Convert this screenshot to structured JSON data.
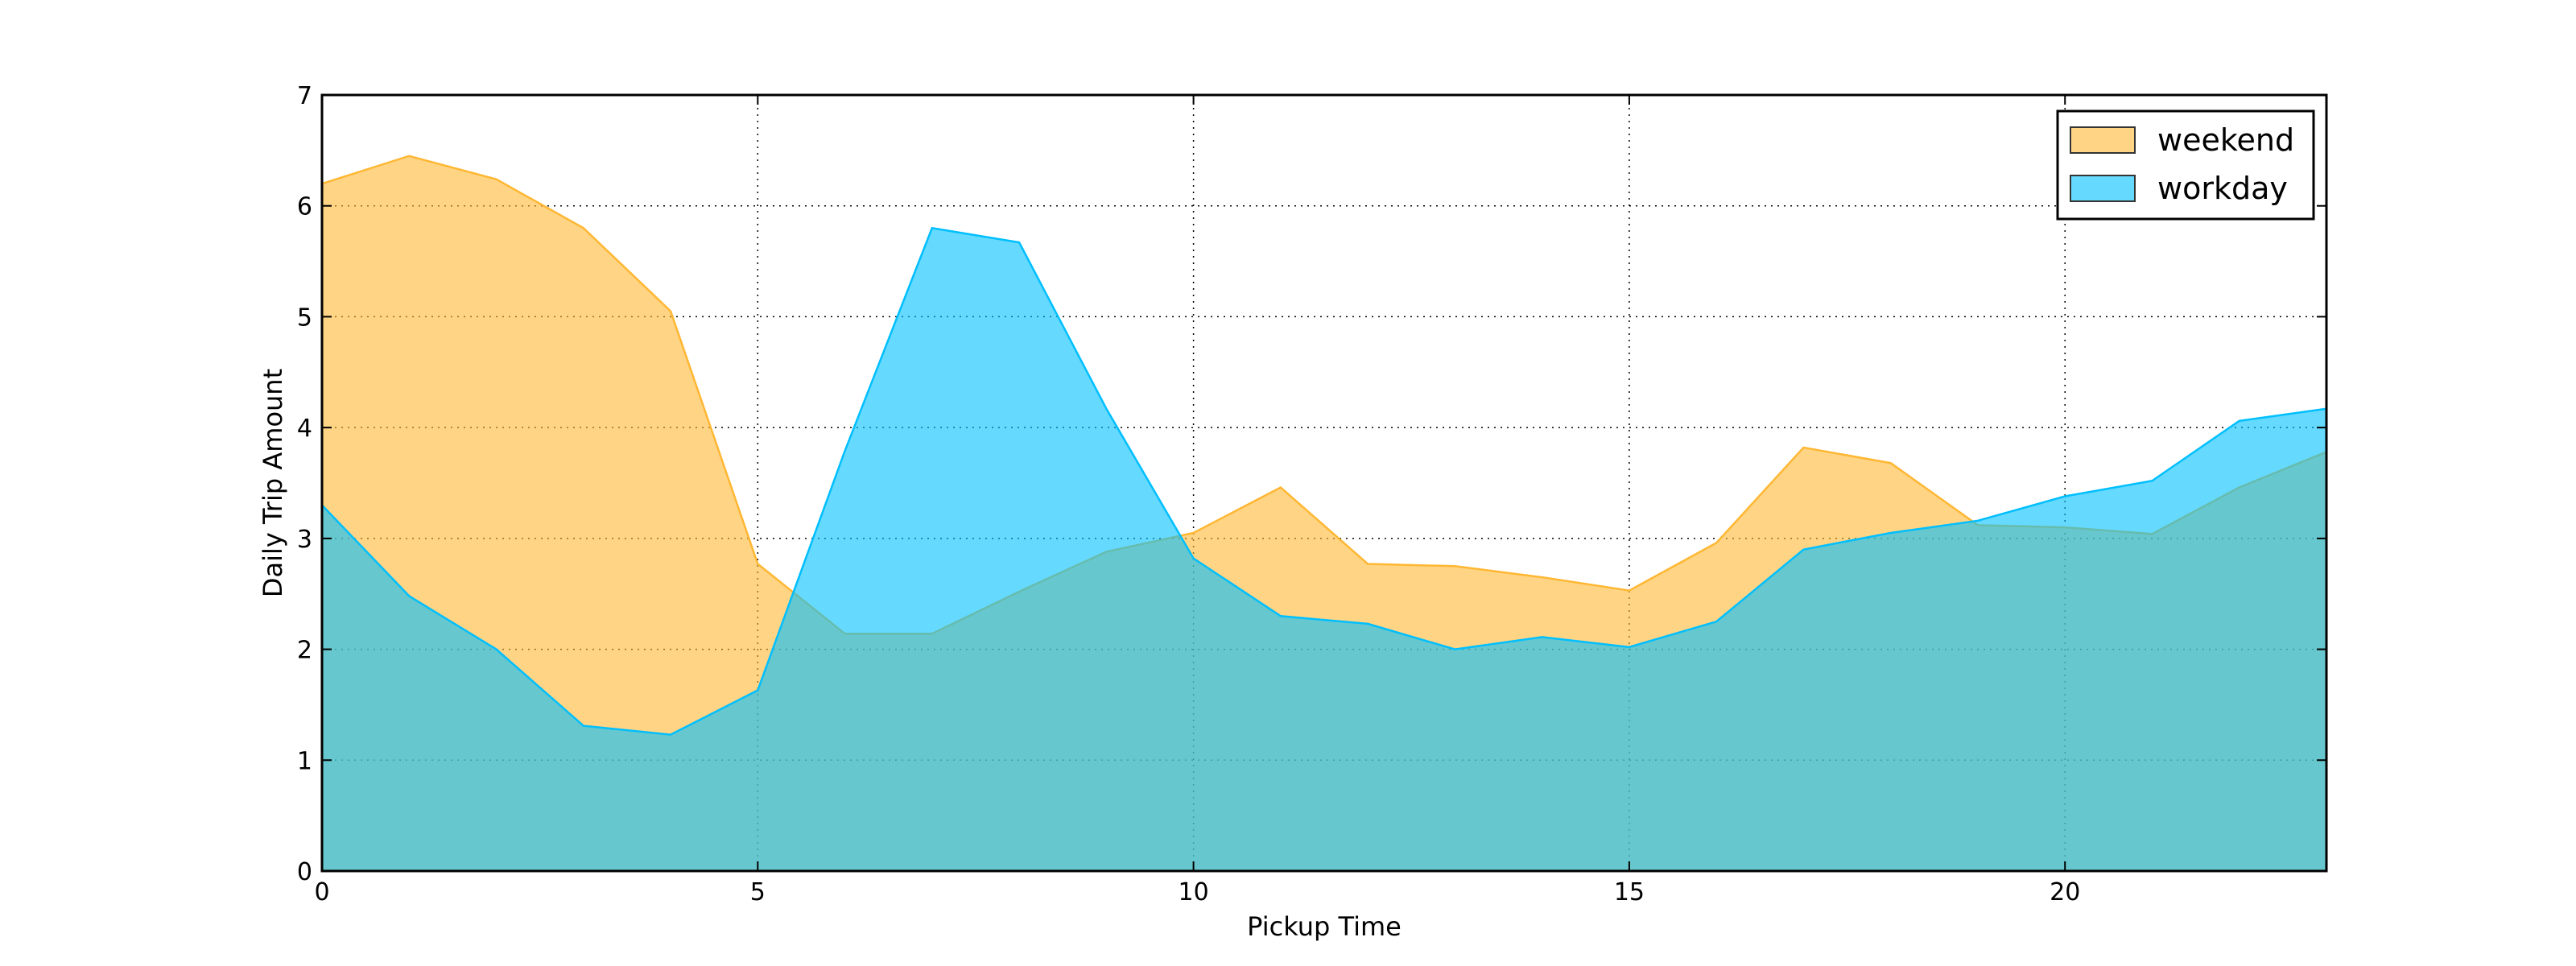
{
  "chart_data": {
    "type": "area",
    "title": "",
    "xlabel": "Pickup Time",
    "ylabel": "Daily Trip Amount",
    "xlim": [
      0,
      23
    ],
    "ylim": [
      0,
      7
    ],
    "xticks": [
      0,
      5,
      10,
      15,
      20
    ],
    "yticks": [
      0,
      1,
      2,
      3,
      4,
      5,
      6,
      7
    ],
    "grid": true,
    "legend_position": "top-right",
    "x": [
      0,
      1,
      2,
      3,
      4,
      5,
      6,
      7,
      8,
      9,
      10,
      11,
      12,
      13,
      14,
      15,
      16,
      17,
      18,
      19,
      20,
      21,
      22,
      23
    ],
    "series": [
      {
        "name": "weekend",
        "color": "#FFB733",
        "values": [
          6.2,
          6.45,
          6.24,
          5.8,
          5.05,
          2.77,
          2.14,
          2.14,
          2.52,
          2.88,
          3.05,
          3.46,
          2.77,
          2.75,
          2.65,
          2.53,
          2.96,
          3.82,
          3.68,
          3.12,
          3.1,
          3.04,
          3.46,
          3.78
        ]
      },
      {
        "name": "workday",
        "color": "#00BFFF",
        "values": [
          3.3,
          2.48,
          2.0,
          1.31,
          1.23,
          1.63,
          3.79,
          5.8,
          5.67,
          4.17,
          2.82,
          2.3,
          2.23,
          2.0,
          2.11,
          2.02,
          2.25,
          2.9,
          3.05,
          3.16,
          3.38,
          3.52,
          4.06,
          4.17
        ]
      }
    ]
  }
}
